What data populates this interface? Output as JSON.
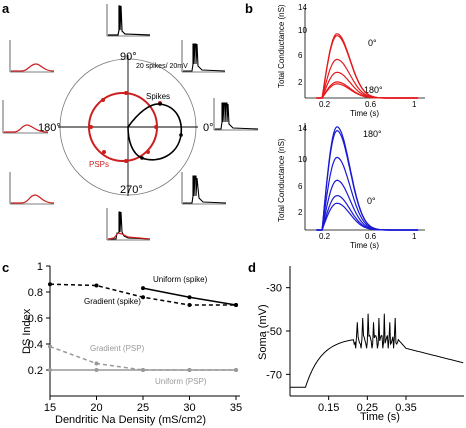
{
  "panels": {
    "a": {
      "label": "a",
      "angles": [
        "90°",
        "180°",
        "0°",
        "270°"
      ],
      "scale_text": "20 spikes/ 20mV",
      "spikes_label": "Spikes",
      "psps_label": "PSPs"
    },
    "b": {
      "label": "b",
      "top": {
        "ylabel": "Total Conductance (nS)",
        "xlabel": "Time (s)",
        "yticks": [
          "2",
          "6",
          "10",
          "14"
        ],
        "xticks": [
          "0.2",
          "0.6",
          "1"
        ],
        "annot_top": "0°",
        "annot_bottom": "180°"
      },
      "bottom": {
        "ylabel": "Total Conductance (nS)",
        "xlabel": "Time (s)",
        "yticks": [
          "2",
          "6",
          "10",
          "14"
        ],
        "xticks": [
          "0.2",
          "0.6",
          "1"
        ],
        "annot_top": "180°",
        "annot_bottom": "0°"
      }
    },
    "c": {
      "label": "c"
    },
    "d": {
      "label": "d"
    }
  },
  "chart_data": [
    {
      "type": "line",
      "title": "",
      "xlabel": "Dendritic Na Density (mS/cm2)",
      "ylabel": "DS Index",
      "xlim": [
        15,
        35
      ],
      "ylim": [
        0,
        1
      ],
      "xticks": [
        15,
        20,
        25,
        30,
        35
      ],
      "yticks": [
        0.2,
        0.4,
        0.6,
        0.8,
        1
      ],
      "series": [
        {
          "name": "Uniform (spike)",
          "color": "#000000",
          "dash": "solid",
          "x": [
            25,
            30,
            35
          ],
          "y": [
            0.83,
            0.76,
            0.7
          ]
        },
        {
          "name": "Gradient (spike)",
          "color": "#000000",
          "dash": "dashed",
          "x": [
            15,
            20,
            25,
            30,
            35
          ],
          "y": [
            0.86,
            0.85,
            0.76,
            0.7,
            0.7
          ]
        },
        {
          "name": "Gradient (PSP)",
          "color": "#999999",
          "dash": "dashed",
          "x": [
            15,
            20,
            25,
            30,
            35
          ],
          "y": [
            0.38,
            0.25,
            0.2,
            0.2,
            0.2
          ]
        },
        {
          "name": "Uniform (PSP)",
          "color": "#999999",
          "dash": "solid",
          "x": [
            15,
            20,
            25,
            30,
            35
          ],
          "y": [
            0.2,
            0.2,
            0.2,
            0.2,
            0.2
          ]
        }
      ]
    },
    {
      "type": "line",
      "title": "",
      "xlabel": "Time (s)",
      "ylabel": "Soma (mV)",
      "xlim": [
        0.05,
        0.5
      ],
      "ylim": [
        -80,
        -20
      ],
      "xticks": [
        0.15,
        0.25,
        0.35
      ],
      "yticks": [
        -30,
        -50,
        -70
      ],
      "series": [
        {
          "name": "",
          "color": "#000000"
        }
      ]
    },
    {
      "type": "line",
      "title": "",
      "xlabel": "Time (s)",
      "ylabel": "Total Conductance (nS)",
      "xlim": [
        0,
        1.05
      ],
      "ylim": [
        0,
        14
      ],
      "color": "#e41a1c",
      "peak_time": 0.28,
      "peaks": [
        10,
        9.7,
        6,
        4,
        2.5,
        2.2
      ]
    },
    {
      "type": "line",
      "title": "",
      "xlabel": "Time (s)",
      "ylabel": "Total Conductance (nS)",
      "xlim": [
        0,
        1.05
      ],
      "ylim": [
        0,
        14
      ],
      "color": "#1a1ad4",
      "peak_time": 0.28,
      "peaks": [
        13.5,
        13,
        9.5,
        6.5,
        4.5,
        3.5
      ]
    }
  ]
}
